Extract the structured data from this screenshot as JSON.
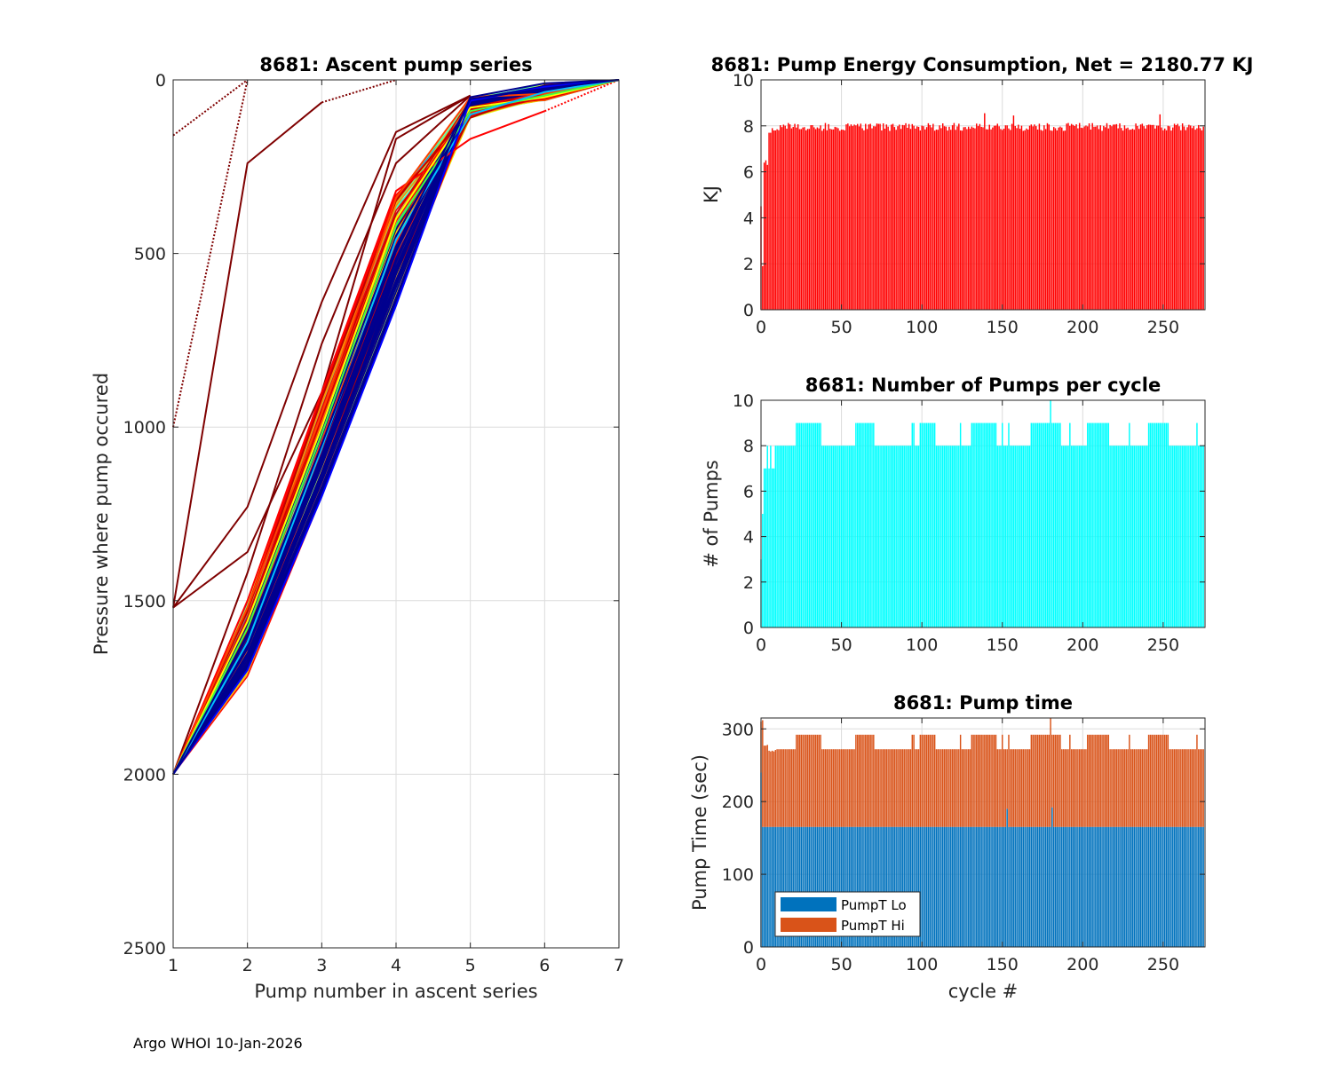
{
  "footer": "Argo WHOI 10-Jan-2026",
  "chart_data": [
    {
      "id": "ascent",
      "type": "line",
      "title": "8681: Ascent pump series",
      "xlabel": "Pump number in ascent series",
      "ylabel": "Pressure where pump occured",
      "xlim": [
        1,
        7
      ],
      "ylim": [
        0,
        2500
      ],
      "y_reversed": true,
      "xticks": [
        1,
        2,
        3,
        4,
        5,
        6,
        7
      ],
      "yticks": [
        0,
        500,
        1000,
        1500,
        2000,
        2500
      ],
      "grid": true,
      "colormap": "jet",
      "series_count_approx": 276,
      "representative_series": [
        {
          "color": "#7f0000",
          "style": "dotted",
          "points": [
            [
              1,
              160
            ],
            [
              2,
              0
            ]
          ]
        },
        {
          "color": "#7f0000",
          "style": "dotted",
          "points": [
            [
              1,
              1000
            ],
            [
              2,
              0
            ]
          ]
        },
        {
          "color": "#7f0000",
          "style": "solid",
          "points": [
            [
              1,
              1520
            ],
            [
              2,
              240
            ],
            [
              3,
              65
            ]
          ]
        },
        {
          "color": "#7f0000",
          "style": "dotted",
          "points": [
            [
              3,
              65
            ],
            [
              4,
              0
            ]
          ]
        },
        {
          "color": "#7f0000",
          "style": "solid",
          "points": [
            [
              1,
              1520
            ],
            [
              2,
              1230
            ],
            [
              3,
              640
            ],
            [
              4,
              150
            ],
            [
              5,
              45
            ]
          ]
        },
        {
          "color": "#7f0000",
          "style": "solid",
          "points": [
            [
              1,
              1520
            ],
            [
              2,
              1360
            ],
            [
              3,
              900
            ],
            [
              4,
              170
            ],
            [
              5,
              45
            ]
          ]
        },
        {
          "color": "#7f0000",
          "style": "solid",
          "points": [
            [
              1,
              2000
            ],
            [
              2,
              1420
            ],
            [
              3,
              760
            ],
            [
              4,
              240
            ],
            [
              5,
              45
            ]
          ]
        },
        {
          "color": "#ff0000",
          "style": "solid",
          "points": [
            [
              1,
              2000
            ],
            [
              2,
              1500
            ],
            [
              3,
              900
            ],
            [
              4,
              320
            ],
            [
              5,
              170
            ],
            [
              6,
              90
            ]
          ]
        },
        {
          "color": "#ff0000",
          "style": "dotted",
          "points": [
            [
              6,
              90
            ],
            [
              7,
              0
            ]
          ]
        },
        {
          "color": "#ff4000",
          "style": "solid",
          "points": [
            [
              1,
              2000
            ],
            [
              2,
              1520
            ],
            [
              3,
              960
            ],
            [
              4,
              340
            ],
            [
              5,
              50
            ],
            [
              6,
              40
            ],
            [
              7,
              0
            ]
          ]
        },
        {
          "color": "#ffff00",
          "style": "solid",
          "points": [
            [
              1,
              2000
            ],
            [
              2,
              1560
            ],
            [
              3,
              1000
            ],
            [
              4,
              400
            ],
            [
              5,
              80
            ],
            [
              6,
              50
            ],
            [
              7,
              0
            ]
          ]
        },
        {
          "color": "#40ff40",
          "style": "solid",
          "points": [
            [
              1,
              2000
            ],
            [
              2,
              1580
            ],
            [
              3,
              1020
            ],
            [
              4,
              420
            ],
            [
              5,
              90
            ],
            [
              6,
              45
            ],
            [
              7,
              0
            ]
          ]
        },
        {
          "color": "#00c0ff",
          "style": "solid",
          "points": [
            [
              1,
              2000
            ],
            [
              2,
              1620
            ],
            [
              3,
              1060
            ],
            [
              4,
              460
            ],
            [
              5,
              100
            ],
            [
              6,
              35
            ],
            [
              7,
              0
            ]
          ]
        },
        {
          "color": "#0000ff",
          "style": "solid",
          "points": [
            [
              1,
              2000
            ],
            [
              2,
              1700
            ],
            [
              3,
              1200
            ],
            [
              4,
              650
            ],
            [
              5,
              60
            ],
            [
              6,
              20
            ],
            [
              7,
              0
            ]
          ]
        },
        {
          "color": "#00008f",
          "style": "solid",
          "points": [
            [
              1,
              2000
            ],
            [
              2,
              1600
            ],
            [
              3,
              1050
            ],
            [
              4,
              480
            ],
            [
              5,
              55
            ],
            [
              6,
              25
            ],
            [
              7,
              0
            ]
          ]
        },
        {
          "color": "#00008f",
          "style": "solid",
          "points": [
            [
              1,
              2000
            ],
            [
              2,
              1680
            ],
            [
              3,
              1150
            ],
            [
              4,
              560
            ],
            [
              5,
              50
            ],
            [
              6,
              10
            ],
            [
              7,
              0
            ]
          ]
        }
      ]
    },
    {
      "id": "energy",
      "type": "bar",
      "title": "8681: Pump Energy Consumption,  Net = 2180.77 KJ",
      "xlabel": "",
      "ylabel": "KJ",
      "xlim": [
        0,
        276
      ],
      "ylim": [
        0,
        10
      ],
      "xticks": [
        0,
        50,
        100,
        150,
        200,
        250
      ],
      "yticks": [
        0,
        2,
        4,
        6,
        8,
        10
      ],
      "grid": true,
      "color": "#ff0000",
      "net_kj": 2180.77,
      "early_values": [
        4.5,
        1.9,
        6.4,
        6.5,
        6.3,
        7.7,
        7.7,
        7.9,
        7.8,
        7.8
      ],
      "typical_value": 7.95,
      "value_range_after_cycle_10": [
        7.7,
        8.5
      ],
      "peaks": [
        {
          "cycle": 139,
          "value": 8.55
        },
        {
          "cycle": 157,
          "value": 8.45
        },
        {
          "cycle": 248,
          "value": 8.5
        }
      ]
    },
    {
      "id": "npumps",
      "type": "bar",
      "title": "8681: Number of Pumps per cycle",
      "xlabel": "",
      "ylabel": "# of Pumps",
      "xlim": [
        0,
        276
      ],
      "ylim": [
        0,
        10
      ],
      "xticks": [
        0,
        50,
        100,
        150,
        200,
        250
      ],
      "yticks": [
        0,
        2,
        4,
        6,
        8,
        10
      ],
      "grid": true,
      "color": "#00ffff",
      "early_values": [
        3,
        5,
        7,
        7,
        8,
        7,
        8,
        7,
        7,
        8
      ],
      "typical_value": 8,
      "segments_of_9": [
        [
          22,
          30
        ],
        [
          31,
          37
        ],
        [
          59,
          70
        ],
        [
          94,
          95
        ],
        [
          99,
          108
        ],
        [
          124,
          124
        ],
        [
          131,
          146
        ],
        [
          150,
          150
        ],
        [
          154,
          154
        ],
        [
          168,
          186
        ],
        [
          192,
          192
        ],
        [
          203,
          216
        ],
        [
          229,
          229
        ],
        [
          241,
          253
        ],
        [
          271,
          271
        ]
      ],
      "max": {
        "cycle": 180,
        "value": 10
      }
    },
    {
      "id": "pumptime",
      "type": "bar",
      "stacked": true,
      "title": "8681: Pump time",
      "xlabel": "cycle #",
      "ylabel": "Pump Time (sec)",
      "xlim": [
        0,
        276
      ],
      "ylim": [
        0,
        315
      ],
      "xticks": [
        0,
        50,
        100,
        150,
        200,
        250
      ],
      "yticks": [
        0,
        100,
        200,
        300
      ],
      "grid": true,
      "legend": {
        "placement": "bottom-left",
        "entries": [
          {
            "name": "PumpT Lo",
            "color": "#0072bd"
          },
          {
            "name": "PumpT Hi",
            "color": "#d95319"
          }
        ]
      },
      "series": [
        {
          "name": "PumpT Lo",
          "color": "#0072bd",
          "typical_value": 165,
          "exceptions": [
            {
              "cycle": 0,
              "value": 240
            },
            {
              "cycle": 153,
              "value": 190
            },
            {
              "cycle": 181,
              "value": 192
            }
          ]
        },
        {
          "name": "PumpT Hi",
          "color": "#d95319",
          "typical_total": 272,
          "total_when_9_pumps": 292,
          "early_totals": [
            310,
            312,
            277,
            277,
            278,
            270,
            269,
            270,
            269,
            271
          ],
          "max": {
            "cycle": 180,
            "total": 315
          }
        }
      ]
    }
  ]
}
